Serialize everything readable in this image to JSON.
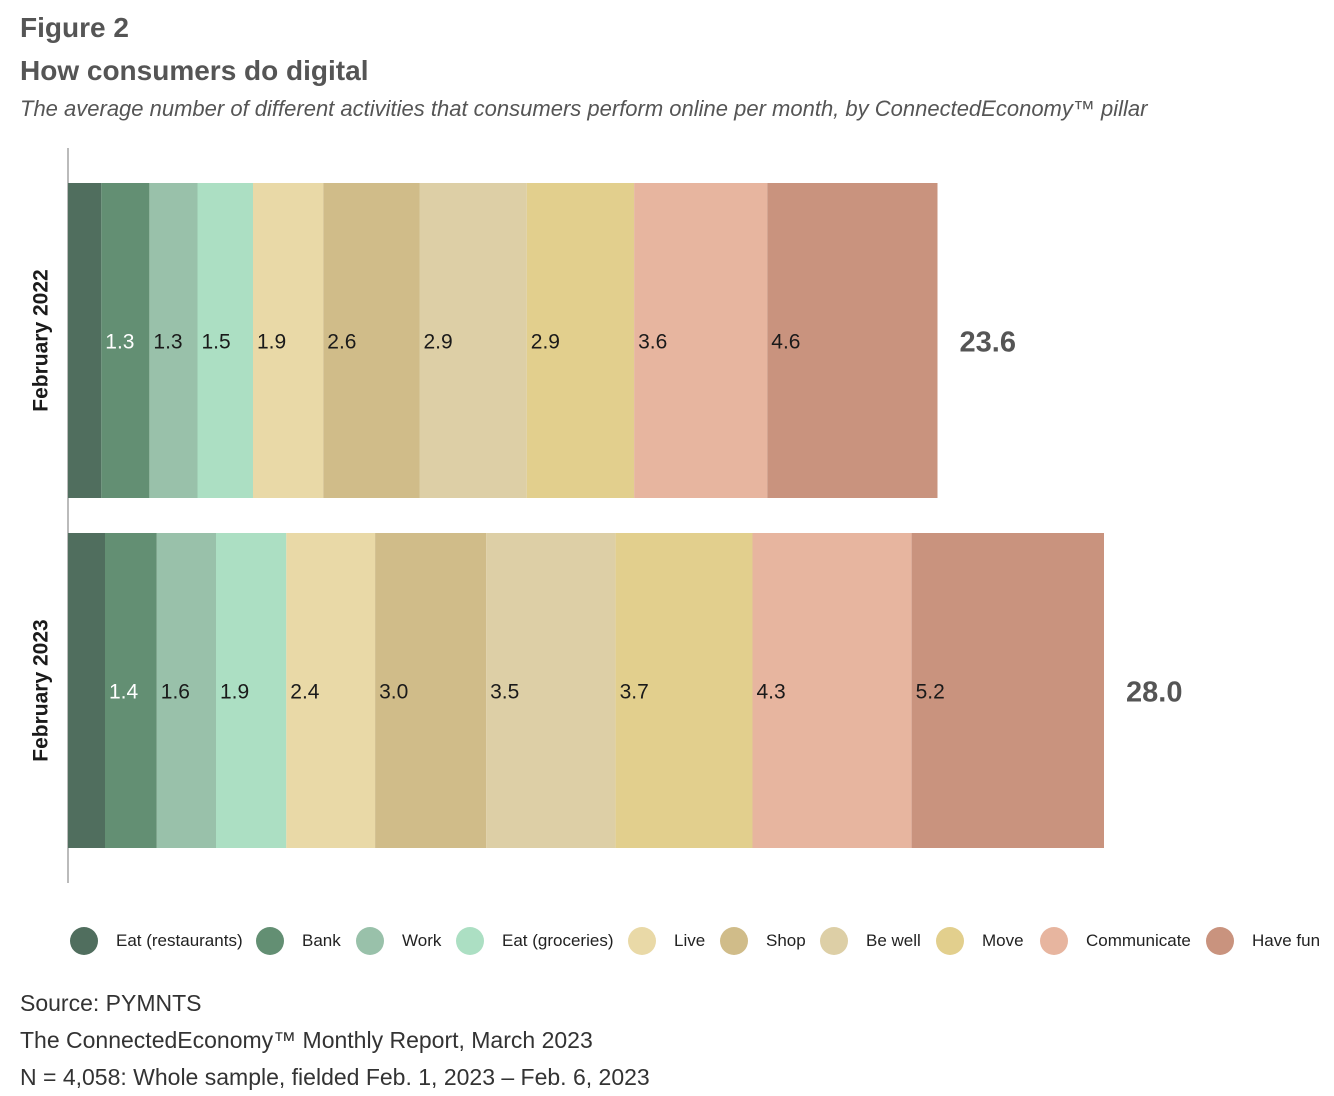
{
  "figure_label": "Figure 2",
  "title": "How consumers do digital",
  "subtitle": "The average number of different activities that consumers perform online per month, by ConnectedEconomy™ pillar",
  "footer": {
    "source": "Source: PYMNTS",
    "report": "The ConnectedEconomy™ Monthly Report, March 2023",
    "sample": "N = 4,058: Whole sample, fielded Feb. 1, 2023 – Feb. 6, 2023"
  },
  "chart_data": {
    "type": "bar",
    "orientation": "horizontal",
    "stacked": true,
    "categories": [
      "February 2022",
      "February 2023"
    ],
    "series": [
      {
        "name": "Eat (restaurants)",
        "color": "#506e5e",
        "values": [
          0.9,
          1.0
        ],
        "labels": [
          "",
          ""
        ]
      },
      {
        "name": "Bank",
        "color": "#638f73",
        "values": [
          1.3,
          1.4
        ],
        "labels": [
          "1.3",
          "1.4"
        ]
      },
      {
        "name": "Work",
        "color": "#99c1aa",
        "values": [
          1.3,
          1.6
        ],
        "labels": [
          "1.3",
          "1.6"
        ]
      },
      {
        "name": "Eat (groceries)",
        "color": "#acdfc3",
        "values": [
          1.5,
          1.9
        ],
        "labels": [
          "1.5",
          "1.9"
        ]
      },
      {
        "name": "Live",
        "color": "#e9d9a7",
        "values": [
          1.9,
          2.4
        ],
        "labels": [
          "1.9",
          "2.4"
        ]
      },
      {
        "name": "Shop",
        "color": "#d0bc89",
        "values": [
          2.6,
          3.0
        ],
        "labels": [
          "2.6",
          "3.0"
        ]
      },
      {
        "name": "Be well",
        "color": "#ddcfa6",
        "values": [
          2.9,
          3.5
        ],
        "labels": [
          "2.9",
          "3.5"
        ]
      },
      {
        "name": "Move",
        "color": "#e2cf8d",
        "values": [
          2.9,
          3.7
        ],
        "labels": [
          "2.9",
          "3.7"
        ]
      },
      {
        "name": "Communicate",
        "color": "#e7b59f",
        "values": [
          3.6,
          4.3
        ],
        "labels": [
          "3.6",
          "4.3"
        ]
      },
      {
        "name": "Have fun",
        "color": "#c9937e",
        "values": [
          4.6,
          5.2
        ],
        "labels": [
          "4.6",
          "5.2"
        ]
      }
    ],
    "totals": [
      "23.6",
      "28.0"
    ],
    "legend_position": "bottom",
    "grid": false
  }
}
